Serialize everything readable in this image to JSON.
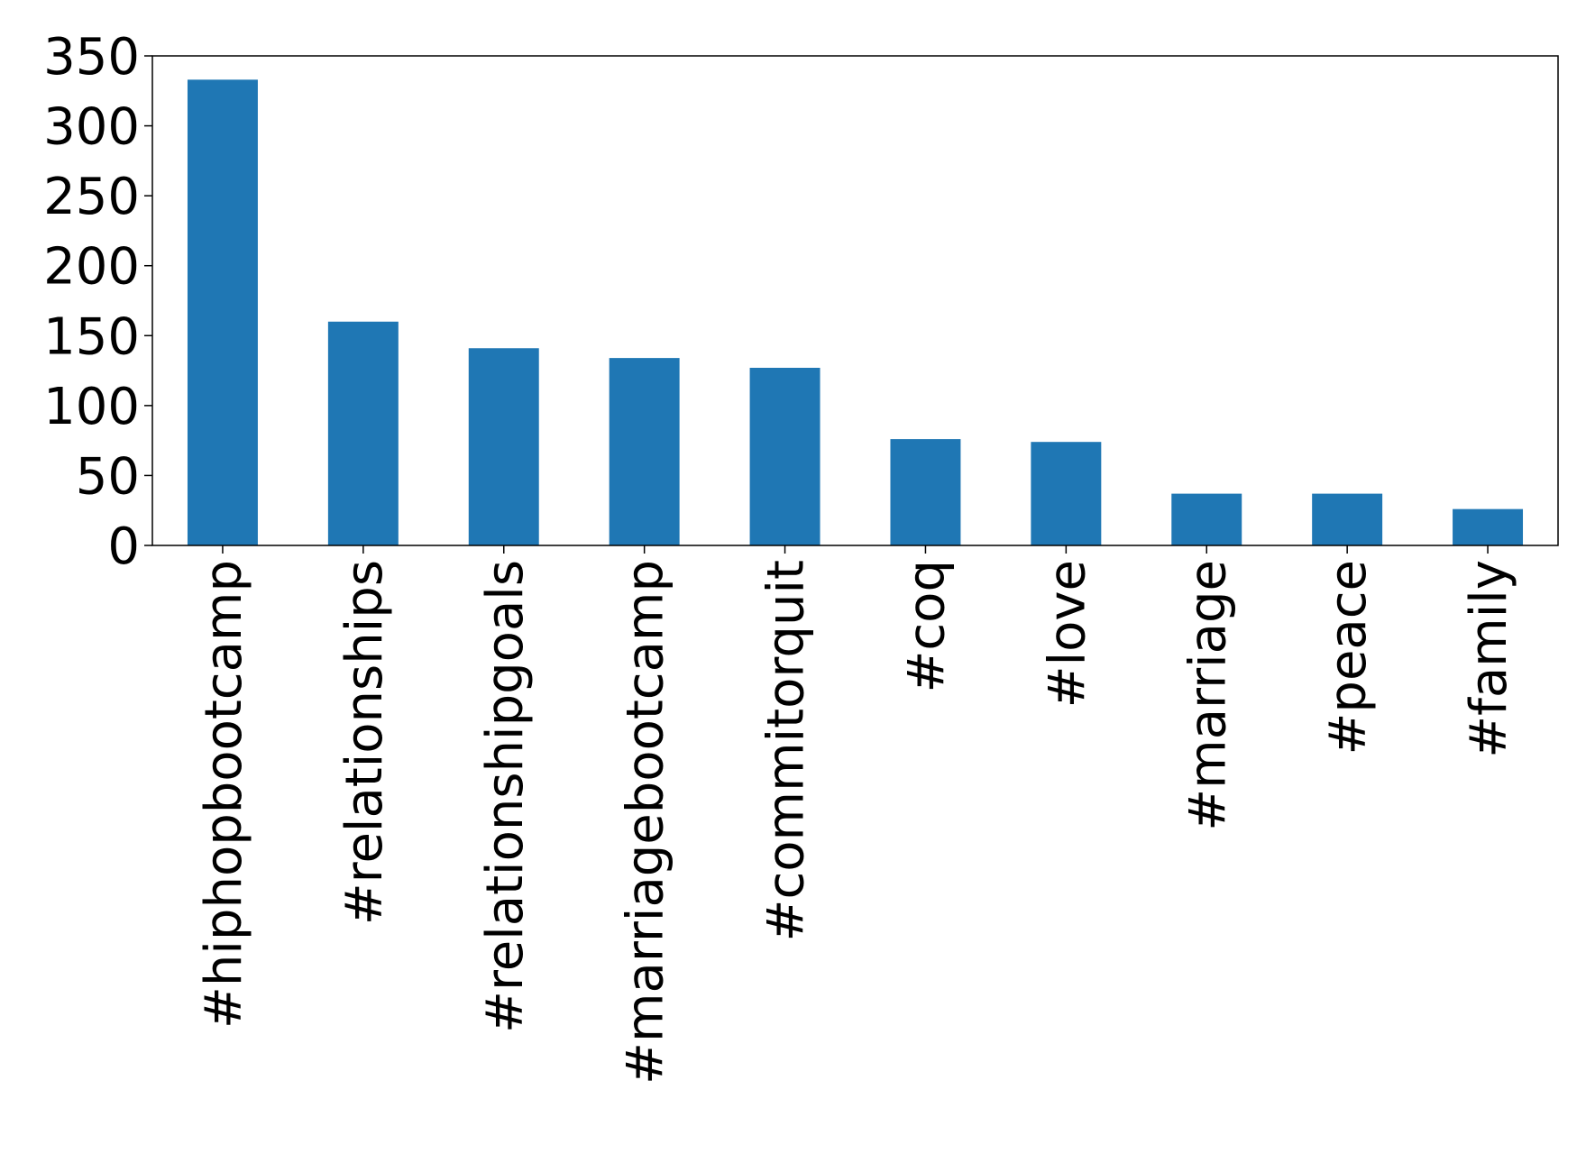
{
  "chart_data": {
    "type": "bar",
    "categories": [
      "#hiphopbootcamp",
      "#relationships",
      "#relationshipgoals",
      "#marriagebootcamp",
      "#commitorquit",
      "#coq",
      "#love",
      "#marriage",
      "#peace",
      "#family"
    ],
    "values": [
      333,
      160,
      141,
      134,
      127,
      76,
      74,
      37,
      37,
      26
    ],
    "color": "#1f77b4",
    "ylim": [
      0,
      350
    ],
    "yticks": [
      0,
      50,
      100,
      150,
      200,
      250,
      300,
      350
    ],
    "grid": false
  }
}
